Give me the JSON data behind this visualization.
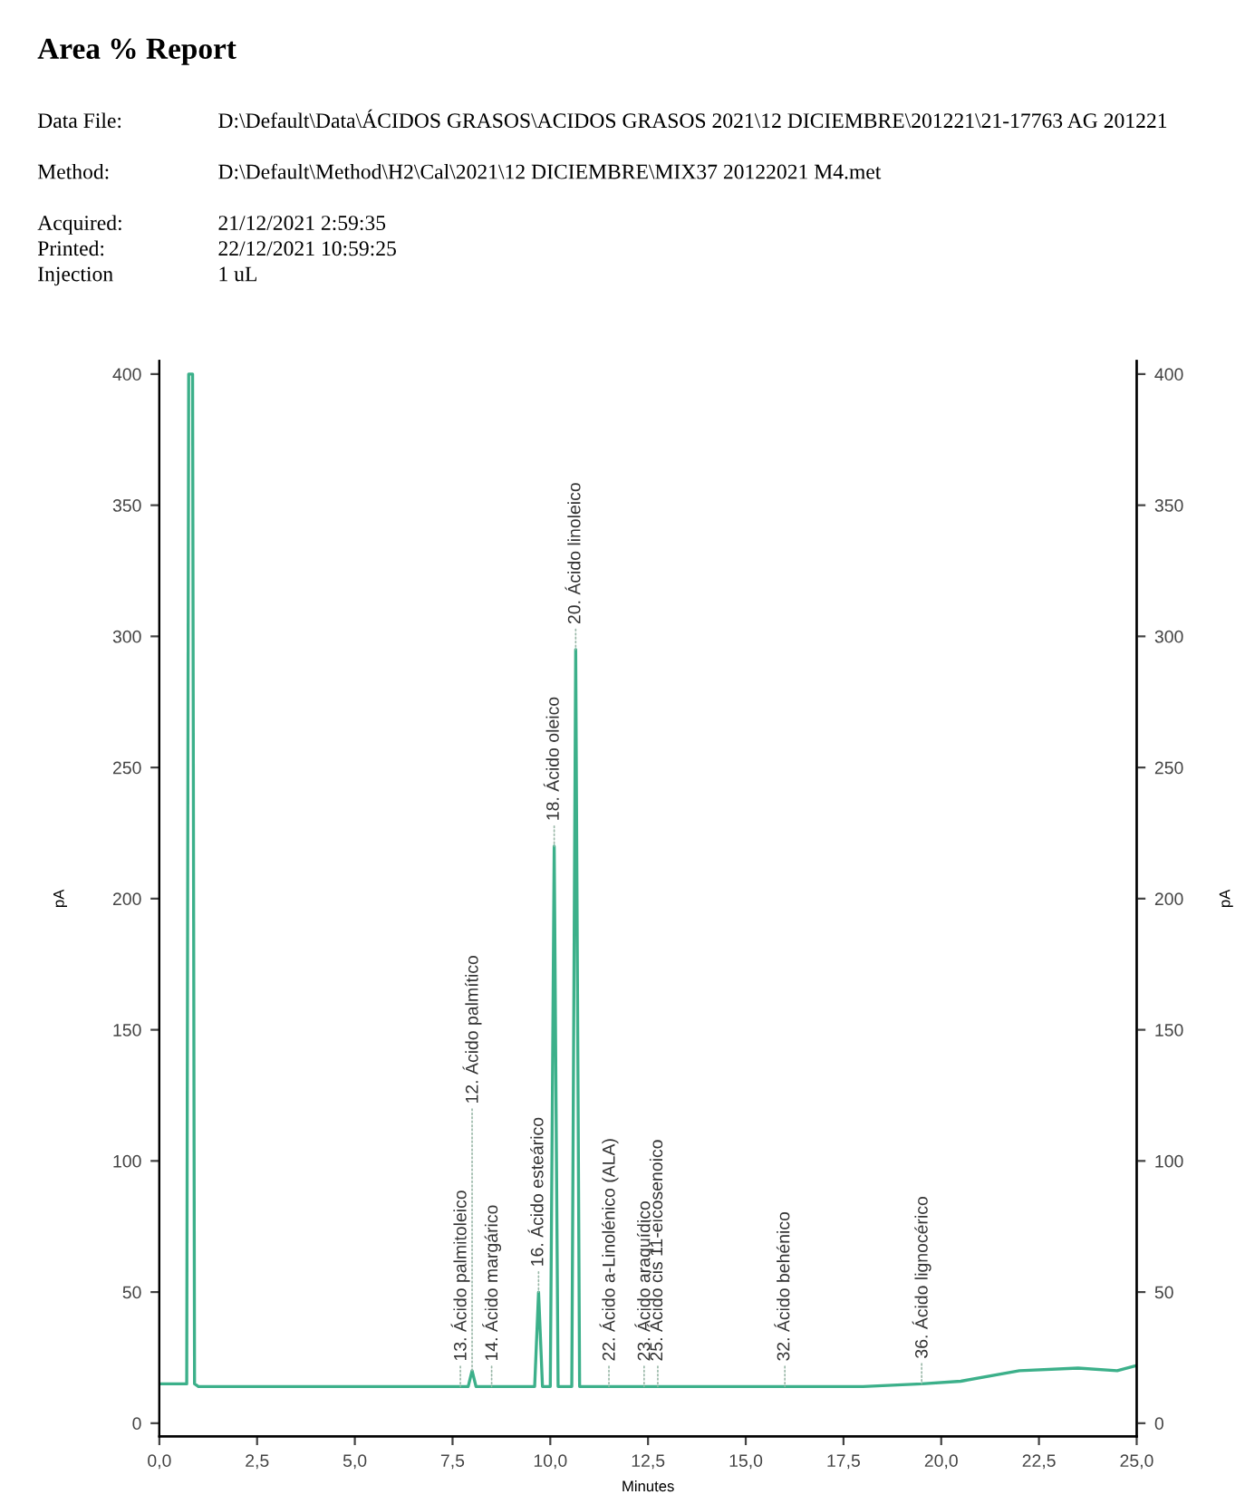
{
  "chart_data": {
    "type": "line",
    "title": "Area % Report",
    "annotations": [
      "Data File:",
      "D:\\Default\\Data\\ÁCIDOS GRASOS\\ACIDOS GRASOS 2021\\12 DICIEMBRE\\201221\\21-17763 AG 201221",
      "Method:",
      "D:\\Default\\Method\\H2\\Cal\\2021\\12 DICIEMBRE\\MIX37 20122021 M4.met",
      "Acquired:",
      "21/12/2021 2:59:35",
      "Printed:",
      "22/12/2021 10:59:25",
      "Injection",
      "1 uL",
      {
        "text": "13. Ácido palmitoleico",
        "x": 7.7,
        "y": 14
      },
      {
        "text": "12. Ácido palmítico",
        "x": 8.0,
        "y": 20
      },
      {
        "text": "14. Ácido margárico",
        "x": 8.5,
        "y": 14
      },
      {
        "text": "16. Ácido esteárico",
        "x": 9.7,
        "y": 50
      },
      {
        "text": "18. Ácido oleico",
        "x": 10.1,
        "y": 220
      },
      {
        "text": "20. Ácido linoleico",
        "x": 10.65,
        "y": 295
      },
      {
        "text": "22. Ácido a-Linolénico (ALA)",
        "x": 11.5,
        "y": 14
      },
      {
        "text": "23. Ácido araquídico",
        "x": 12.4,
        "y": 14
      },
      {
        "text": "25. Ácido cis 11-eicosenoico",
        "x": 12.75,
        "y": 14
      },
      {
        "text": "32. Ácido behénico",
        "x": 16.0,
        "y": 14
      },
      {
        "text": "36. Ácido lignocérico",
        "x": 19.5,
        "y": 15
      }
    ],
    "xlabel": "Minutes",
    "ylabel": "pA",
    "y2label": "pA",
    "xlim": [
      0,
      25
    ],
    "ylim": [
      -5,
      405
    ],
    "y2lim": [
      -5,
      405
    ],
    "xticks": [
      {
        "value": 0,
        "label": "0,0"
      },
      {
        "value": 2.5,
        "label": "2,5"
      },
      {
        "value": 5,
        "label": "5,0"
      },
      {
        "value": 7.5,
        "label": "7,5"
      },
      {
        "value": 10,
        "label": "10,0"
      },
      {
        "value": 12.5,
        "label": "12,5"
      },
      {
        "value": 15,
        "label": "15,0"
      },
      {
        "value": 17.5,
        "label": "17,5"
      },
      {
        "value": 20,
        "label": "20,0"
      },
      {
        "value": 22.5,
        "label": "22,5"
      },
      {
        "value": 25,
        "label": "25,0"
      }
    ],
    "yticks": [
      0,
      50,
      100,
      150,
      200,
      250,
      300,
      350,
      400
    ],
    "y2ticks": [
      0,
      50,
      100,
      150,
      200,
      250,
      300,
      350,
      400
    ],
    "grid": false,
    "legend": false,
    "marker": "none",
    "line_style": "solid",
    "x": [
      0,
      0.7,
      0.75,
      0.85,
      0.9,
      1.0,
      7.7,
      7.9,
      8.0,
      8.1,
      8.5,
      9.6,
      9.7,
      9.8,
      10.0,
      10.1,
      10.2,
      10.55,
      10.65,
      10.75,
      11.0,
      11.5,
      12.4,
      12.75,
      16.0,
      18.0,
      19.5,
      20.5,
      22.0,
      23.5,
      24.5,
      25.0
    ],
    "series": [
      {
        "color": "#3cb08a",
        "values": [
          15,
          15,
          400,
          400,
          15,
          14,
          14,
          14,
          20,
          14,
          14,
          14,
          50,
          14,
          14,
          220,
          14,
          14,
          295,
          14,
          14,
          14,
          14,
          14,
          14,
          14,
          15,
          16,
          20,
          21,
          20,
          22
        ]
      }
    ]
  }
}
